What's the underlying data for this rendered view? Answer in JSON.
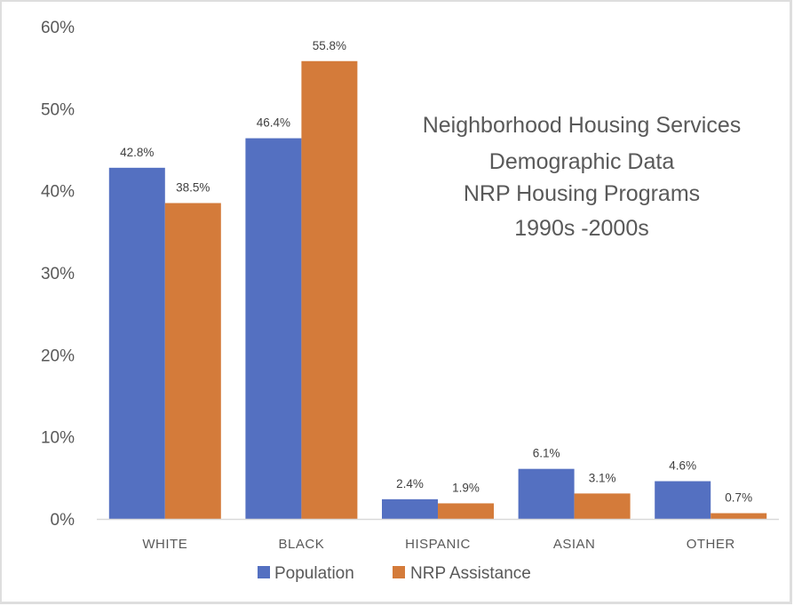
{
  "chart_data": {
    "type": "bar",
    "title_lines": [
      "Neighborhood Housing Services",
      "Demographic Data",
      "NRP Housing Programs",
      "1990s -2000s"
    ],
    "categories": [
      "WHITE",
      "BLACK",
      "HISPANIC",
      "ASIAN",
      "OTHER"
    ],
    "series": [
      {
        "name": "Population",
        "color": "#5470C1",
        "values": [
          42.8,
          46.4,
          2.4,
          6.1,
          4.6
        ],
        "labels": [
          "42.8%",
          "46.4%",
          "2.4%",
          "6.1%",
          "4.6%"
        ]
      },
      {
        "name": "NRP Assistance",
        "color": "#D47B3A",
        "values": [
          38.5,
          55.8,
          1.9,
          3.1,
          0.7
        ],
        "labels": [
          "38.5%",
          "55.8%",
          "1.9%",
          "3.1%",
          "0.7%"
        ]
      }
    ],
    "yticks": [
      "0%",
      "10%",
      "20%",
      "30%",
      "40%",
      "50%",
      "60%"
    ],
    "ytick_values": [
      0,
      10,
      20,
      30,
      40,
      50,
      60
    ],
    "ylim": [
      0,
      60
    ],
    "xlabel": "",
    "ylabel": "",
    "grid": false,
    "legend_position": "bottom"
  }
}
